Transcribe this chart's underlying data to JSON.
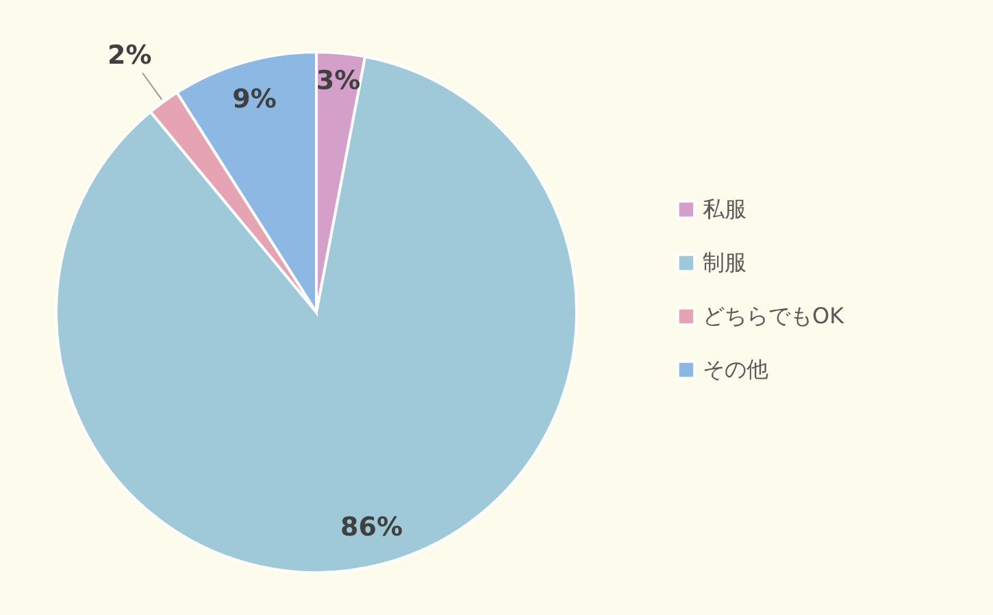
{
  "chart_data": {
    "type": "pie",
    "categories": [
      "私服",
      "制服",
      "どちらでもOK",
      "その他"
    ],
    "values": [
      3,
      86,
      2,
      9
    ],
    "colors": [
      "#d49fc8",
      "#9fc9d8",
      "#e6a3b3",
      "#8db8e3"
    ],
    "value_labels": [
      "3%",
      "86%",
      "2%",
      "9%"
    ],
    "legend": "right"
  }
}
